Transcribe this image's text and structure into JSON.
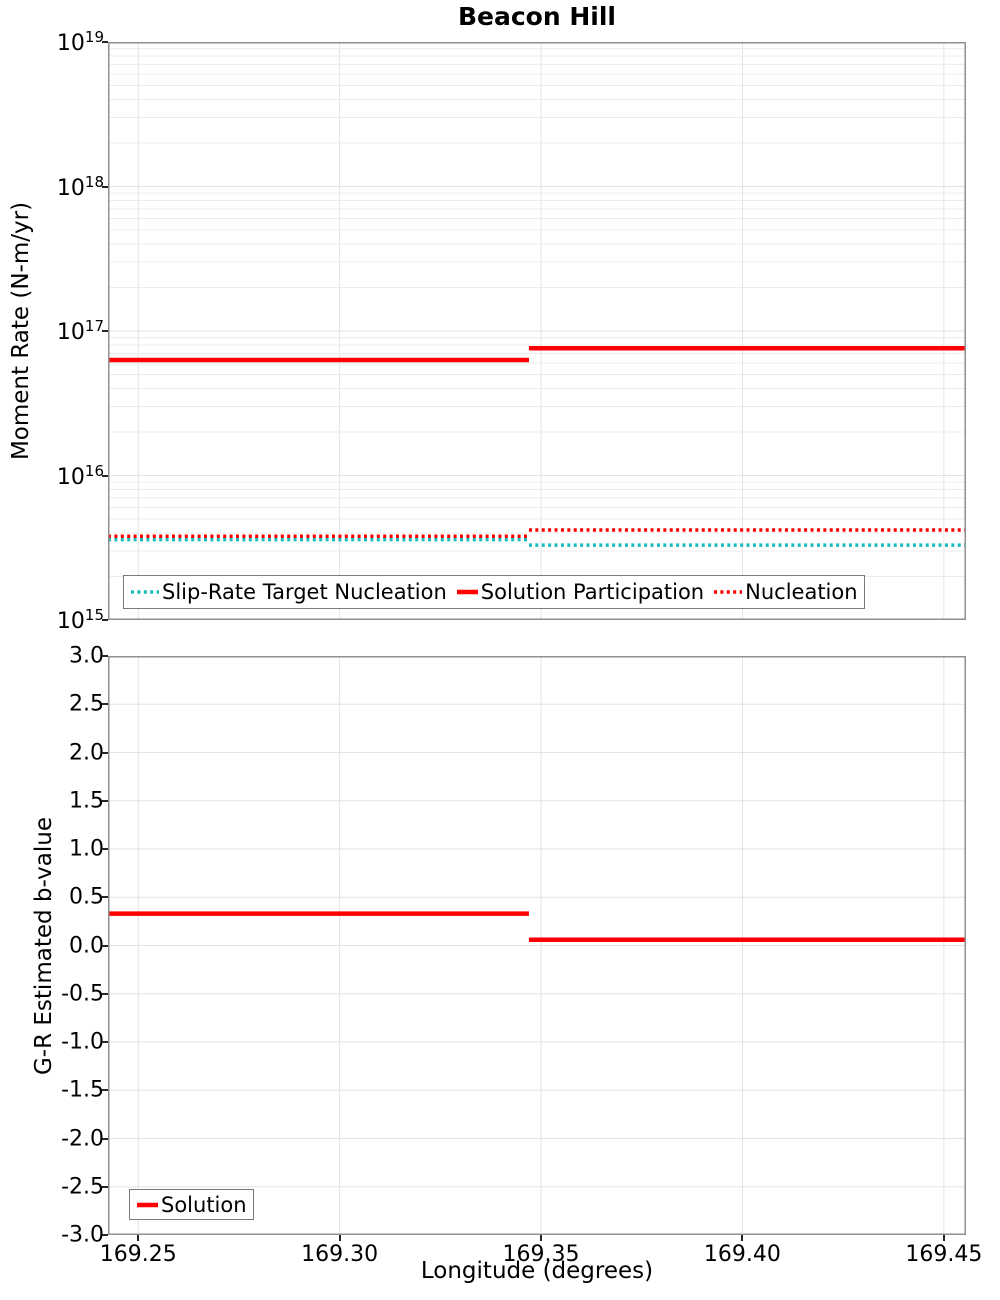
{
  "title": "Beacon Hill",
  "colors": {
    "solution_red": "#ff0000",
    "target_teal": "#1cbcbd",
    "grid_minor": "#ececec",
    "grid_major": "#e3e3e3",
    "frame": "#8f8f8f",
    "tick": "#262626",
    "legend_border": "#7a7a7a",
    "text": "#000000"
  },
  "chart_data": [
    {
      "type": "line",
      "subplot": "top",
      "title": "Beacon Hill",
      "ylabel": "Moment Rate (N-m/yr)",
      "yscale": "log",
      "ylim": [
        1000000000000000.0,
        1e+19
      ],
      "ytick_exponents": [
        19,
        18,
        17,
        16,
        15
      ],
      "xlim": [
        169.2425,
        169.4555
      ],
      "xticks": [
        169.25,
        169.3,
        169.35,
        169.4,
        169.45
      ],
      "x_step_edges": [
        169.2425,
        169.347,
        169.4555
      ],
      "grid": true,
      "legend_position": "bottom-left-inside",
      "series": [
        {
          "name": "Slip-Rate Target Nucleation",
          "style": "dotted",
          "color_key": "target_teal",
          "values": [
            3600000000000000.0,
            3300000000000000.0
          ]
        },
        {
          "name": "Solution Participation",
          "style": "solid",
          "color_key": "solution_red",
          "values": [
            6.3e+16,
            7.6e+16
          ]
        },
        {
          "name": "Nucleation",
          "style": "dotted",
          "color_key": "solution_red",
          "values": [
            3800000000000000.0,
            4200000000000000.0
          ]
        }
      ]
    },
    {
      "type": "line",
      "subplot": "bottom",
      "xlabel": "Longitude (degrees)",
      "ylabel": "G-R Estimated b-value",
      "yscale": "linear",
      "ylim": [
        -3.0,
        3.0
      ],
      "yticks": [
        3.0,
        2.5,
        2.0,
        1.5,
        1.0,
        0.5,
        0.0,
        -0.5,
        -1.0,
        -1.5,
        -2.0,
        -2.5,
        -3.0
      ],
      "ytick_labels": [
        "3.0",
        "2.5",
        "2.0",
        "1.5",
        "1.0",
        "0.5",
        "0.0",
        "-0.5",
        "-1.0",
        "-1.5",
        "-2.0",
        "-2.5",
        "-3.0"
      ],
      "xlim": [
        169.2425,
        169.4555
      ],
      "xticks": [
        169.25,
        169.3,
        169.35,
        169.4,
        169.45
      ],
      "xtick_labels": [
        "169.25",
        "169.30",
        "169.35",
        "169.40",
        "169.45"
      ],
      "x_step_edges": [
        169.2425,
        169.347,
        169.4555
      ],
      "grid": true,
      "legend_position": "bottom-left-inside",
      "series": [
        {
          "name": "Solution",
          "style": "solid",
          "color_key": "solution_red",
          "values": [
            0.33,
            0.06
          ]
        }
      ]
    }
  ]
}
